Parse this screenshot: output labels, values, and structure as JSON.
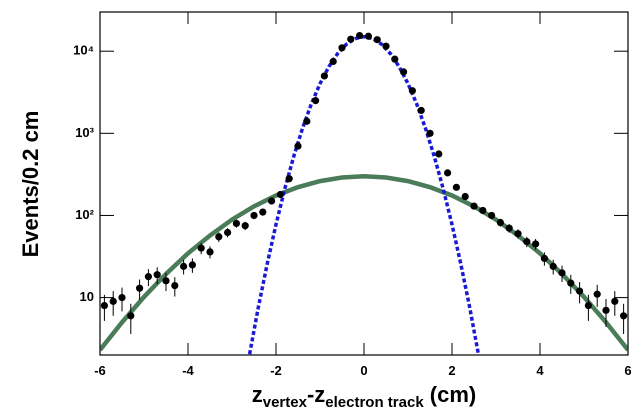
{
  "chart_data": {
    "type": "scatter",
    "y_label": "Events/0.2 cm",
    "x_label": [
      {
        "text": "z"
      },
      {
        "text": "vertex",
        "sub": true
      },
      {
        "text": "-z"
      },
      {
        "text": "electron track",
        "sub": true
      },
      {
        "text": " (cm)"
      }
    ],
    "xlim": [
      -6,
      6
    ],
    "xticks": [
      -6,
      -4,
      -2,
      0,
      2,
      4,
      6
    ],
    "ylim": [
      2,
      30000
    ],
    "ylog": true,
    "yticks": [
      10,
      {
        "value": 100,
        "label": "10²"
      },
      {
        "value": 1000,
        "label": "10³"
      },
      {
        "value": 10000,
        "label": "10⁴"
      }
    ],
    "points": {
      "color": "#000000",
      "x": [
        -5.9,
        -5.7,
        -5.5,
        -5.3,
        -5.1,
        -4.9,
        -4.7,
        -4.5,
        -4.3,
        -4.1,
        -3.9,
        -3.7,
        -3.5,
        -3.3,
        -3.1,
        -2.9,
        -2.7,
        -2.5,
        -2.3,
        -2.1,
        -1.9,
        -1.7,
        -1.5,
        -1.3,
        -1.1,
        -0.9,
        -0.7,
        -0.5,
        -0.3,
        -0.1,
        0.1,
        0.3,
        0.5,
        0.7,
        0.9,
        1.1,
        1.3,
        1.5,
        1.7,
        1.9,
        2.1,
        2.3,
        2.5,
        2.7,
        2.9,
        3.1,
        3.3,
        3.5,
        3.7,
        3.9,
        4.1,
        4.3,
        4.5,
        4.7,
        4.9,
        5.1,
        5.3,
        5.5,
        5.7,
        5.9
      ],
      "values": [
        8,
        9,
        10,
        6,
        13,
        18,
        19,
        16,
        14,
        24,
        25,
        40,
        36,
        55,
        62,
        80,
        75,
        100,
        110,
        150,
        180,
        280,
        700,
        1400,
        2500,
        5000,
        7500,
        11000,
        14000,
        15500,
        15200,
        13800,
        11500,
        8000,
        5600,
        3300,
        1900,
        1000,
        560,
        330,
        220,
        170,
        130,
        115,
        100,
        82,
        70,
        60,
        48,
        45,
        30,
        24,
        20,
        15,
        12,
        8,
        11,
        7,
        9,
        6
      ],
      "errors": [
        2.8,
        3,
        3.2,
        2.4,
        3.6,
        4.2,
        4.4,
        4,
        3.7,
        4.9,
        5,
        6.3,
        6,
        7.4,
        7.9,
        8.9,
        8.7,
        10,
        10.5,
        12.2,
        13.4,
        16.7,
        26,
        37,
        50,
        71,
        87,
        105,
        118,
        124,
        123,
        117,
        107,
        89,
        75,
        57,
        44,
        32,
        24,
        18,
        15,
        13,
        11.4,
        10.7,
        10,
        9,
        8.4,
        7.7,
        6.9,
        6.7,
        5.5,
        4.9,
        4.5,
        3.9,
        3.5,
        2.8,
        3.3,
        2.6,
        3,
        2.4
      ]
    },
    "curves": [
      {
        "color": "#4a7c59",
        "dashed": false,
        "x": [
          -6,
          -5.5,
          -5,
          -4.5,
          -4,
          -3.5,
          -3,
          -2.5,
          -2,
          -1.5,
          -1,
          -0.5,
          0,
          0.5,
          1,
          1.5,
          2,
          2.5,
          3,
          3.5,
          4,
          4.5,
          5,
          5.5,
          6
        ],
        "values": [
          2.3,
          5.0,
          10.2,
          19.4,
          34.6,
          57,
          89,
          129,
          175,
          221,
          262,
          290,
          300,
          290,
          262,
          221,
          175,
          129,
          89,
          57,
          34.6,
          19.4,
          10.2,
          5.0,
          2.3
        ]
      },
      {
        "color": "#1a1ad6",
        "dashed": true,
        "x": [
          -2.6,
          -2.4,
          -2.2,
          -2,
          -1.8,
          -1.6,
          -1.4,
          -1.2,
          -1,
          -0.8,
          -0.6,
          -0.4,
          -0.2,
          0,
          0.2,
          0.4,
          0.6,
          0.8,
          1,
          1.2,
          1.4,
          1.6,
          1.8,
          2,
          2.2,
          2.4,
          2.6
        ],
        "values": [
          2.05,
          7.7,
          25.7,
          77.7,
          211,
          517,
          1140,
          2260,
          4020,
          6460,
          9340,
          12150,
          14230,
          15000,
          14230,
          12150,
          9340,
          6460,
          4020,
          2260,
          1140,
          517,
          211,
          77.7,
          25.7,
          7.7,
          2.05
        ]
      }
    ]
  }
}
